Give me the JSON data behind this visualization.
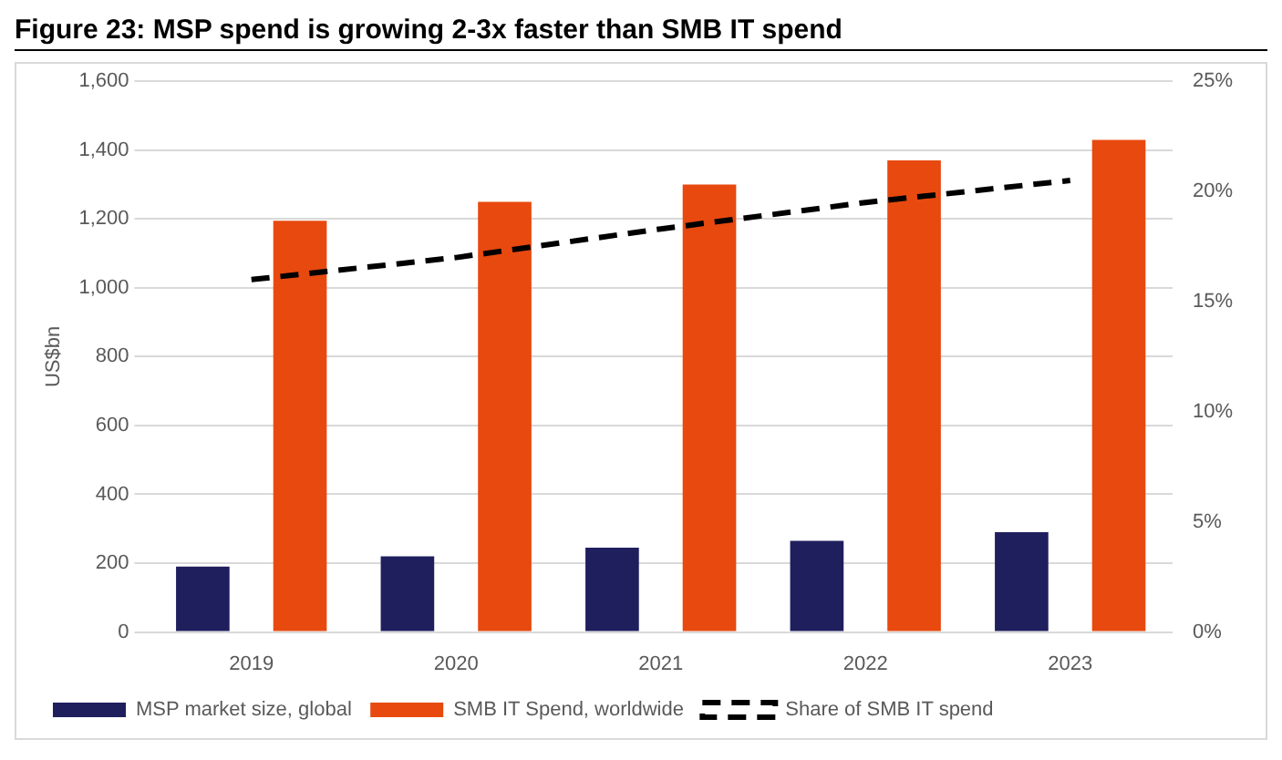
{
  "chart_data": {
    "type": "bar",
    "title": "Figure 23: MSP spend is growing 2-3x faster than SMB IT spend",
    "ylabel": "US$bn",
    "categories": [
      "2019",
      "2020",
      "2021",
      "2022",
      "2023"
    ],
    "series": [
      {
        "name": "MSP market size, global",
        "color": "#1f1f5e",
        "values": [
          190,
          220,
          245,
          265,
          290
        ]
      },
      {
        "name": "SMB IT Spend, worldwide",
        "color": "#e8490f",
        "values": [
          1195,
          1250,
          1300,
          1370,
          1430
        ]
      },
      {
        "name": "Share of SMB IT spend",
        "type": "line",
        "axis": "y2",
        "color": "#000000",
        "line_style": "dashed",
        "values": [
          16,
          17,
          18.3,
          19.5,
          20.5
        ]
      }
    ],
    "ylim": [
      0,
      1600
    ],
    "yticks": [
      {
        "value": 0,
        "label": "0"
      },
      {
        "value": 200,
        "label": "200"
      },
      {
        "value": 400,
        "label": "400"
      },
      {
        "value": 600,
        "label": "600"
      },
      {
        "value": 800,
        "label": "800"
      },
      {
        "value": 1000,
        "label": "1,000"
      },
      {
        "value": 1200,
        "label": "1,200"
      },
      {
        "value": 1400,
        "label": "1,400"
      },
      {
        "value": 1600,
        "label": "1,600"
      }
    ],
    "y2lim": [
      0,
      25
    ],
    "y2ticks": [
      {
        "value": 0,
        "label": "0%"
      },
      {
        "value": 5,
        "label": "5%"
      },
      {
        "value": 10,
        "label": "10%"
      },
      {
        "value": 15,
        "label": "15%"
      },
      {
        "value": 20,
        "label": "20%"
      },
      {
        "value": 25,
        "label": "25%"
      }
    ],
    "grid": "y",
    "legend": "bottom",
    "marker": "none"
  }
}
